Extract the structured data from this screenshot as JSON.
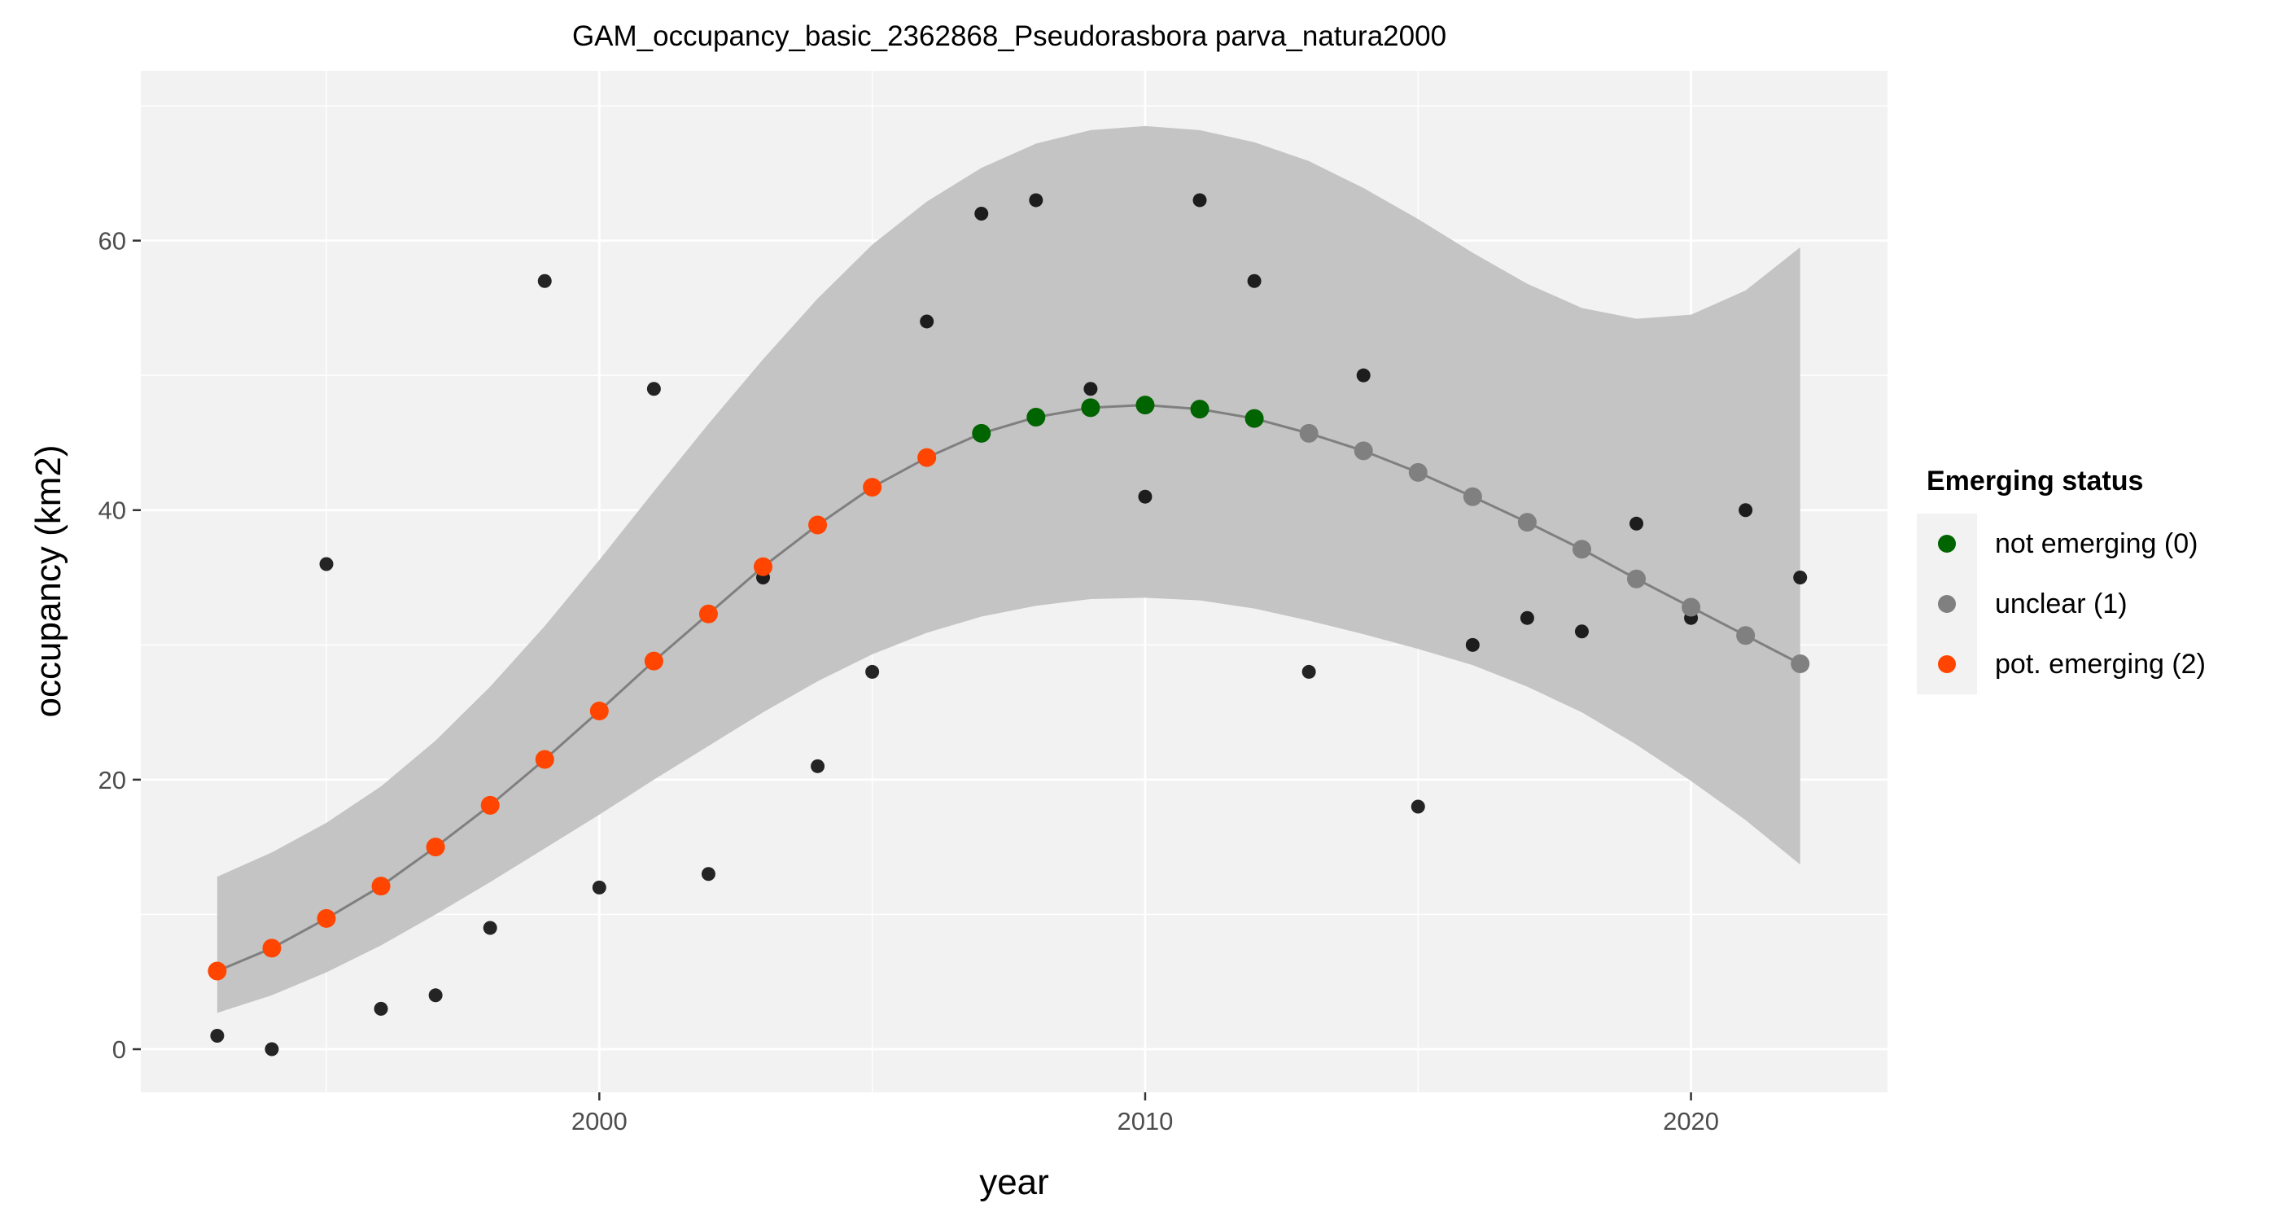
{
  "chart_data": {
    "type": "scatter",
    "title": "GAM_occupancy_basic_2362868_Pseudorasbora parva_natura2000",
    "xlabel": "year",
    "ylabel": "occupancy (km2)",
    "xlim": [
      1991.6,
      2023.6
    ],
    "ylim": [
      -3.2,
      72.6
    ],
    "x_ticks": [
      2000,
      2010,
      2020
    ],
    "y_ticks": [
      0,
      20,
      40,
      60
    ],
    "grid": true,
    "legend": {
      "title": "Emerging status",
      "position": "right",
      "entries": [
        {
          "label": "not emerging (0)",
          "color": "#006400"
        },
        {
          "label": "unclear (1)",
          "color": "#808080"
        },
        {
          "label": "pot. emerging (2)",
          "color": "#ff4500"
        }
      ]
    },
    "observed": {
      "color": "#000000",
      "x": [
        1993,
        1994,
        1995,
        1996,
        1997,
        1998,
        1999,
        2000,
        2001,
        2002,
        2003,
        2004,
        2005,
        2006,
        2007,
        2008,
        2009,
        2010,
        2011,
        2012,
        2013,
        2014,
        2015,
        2016,
        2017,
        2018,
        2019,
        2020,
        2021,
        2022
      ],
      "y": [
        1,
        0,
        36,
        3,
        4,
        9,
        57,
        12,
        49,
        13,
        35,
        21,
        28,
        54,
        62,
        63,
        49,
        41,
        63,
        57,
        28,
        50,
        18,
        30,
        32,
        31,
        39,
        32,
        40,
        35
      ]
    },
    "fitted": {
      "line_color": "#7f7f7f",
      "x": [
        1993,
        1994,
        1995,
        1996,
        1997,
        1998,
        1999,
        2000,
        2001,
        2002,
        2003,
        2004,
        2005,
        2006,
        2007,
        2008,
        2009,
        2010,
        2011,
        2012,
        2013,
        2014,
        2015,
        2016,
        2017,
        2018,
        2019,
        2020,
        2021,
        2022
      ],
      "y": [
        5.8,
        7.5,
        9.7,
        12.1,
        15.0,
        18.1,
        21.5,
        25.1,
        28.8,
        32.3,
        35.8,
        38.9,
        41.7,
        43.9,
        45.7,
        46.9,
        47.6,
        47.8,
        47.5,
        46.8,
        45.7,
        44.4,
        42.8,
        41.0,
        39.1,
        37.1,
        34.9,
        32.8,
        30.7,
        28.6
      ],
      "status": [
        2,
        2,
        2,
        2,
        2,
        2,
        2,
        2,
        2,
        2,
        2,
        2,
        2,
        2,
        0,
        0,
        0,
        0,
        0,
        0,
        1,
        1,
        1,
        1,
        1,
        1,
        1,
        1,
        1,
        1
      ],
      "ci_lower": [
        2.7,
        4.0,
        5.7,
        7.7,
        10.0,
        12.4,
        14.9,
        17.4,
        20.0,
        22.5,
        25.0,
        27.3,
        29.3,
        30.9,
        32.1,
        32.9,
        33.4,
        33.5,
        33.3,
        32.7,
        31.8,
        30.8,
        29.7,
        28.5,
        26.9,
        25.0,
        22.6,
        19.9,
        17.0,
        13.7
      ],
      "ci_upper": [
        12.8,
        14.6,
        16.8,
        19.5,
        22.9,
        26.9,
        31.4,
        36.3,
        41.4,
        46.4,
        51.2,
        55.7,
        59.7,
        62.9,
        65.4,
        67.2,
        68.2,
        68.5,
        68.2,
        67.3,
        65.9,
        63.9,
        61.6,
        59.1,
        56.8,
        55.0,
        54.2,
        54.5,
        56.3,
        59.5
      ],
      "ci_color": "#c4c4c4"
    }
  }
}
